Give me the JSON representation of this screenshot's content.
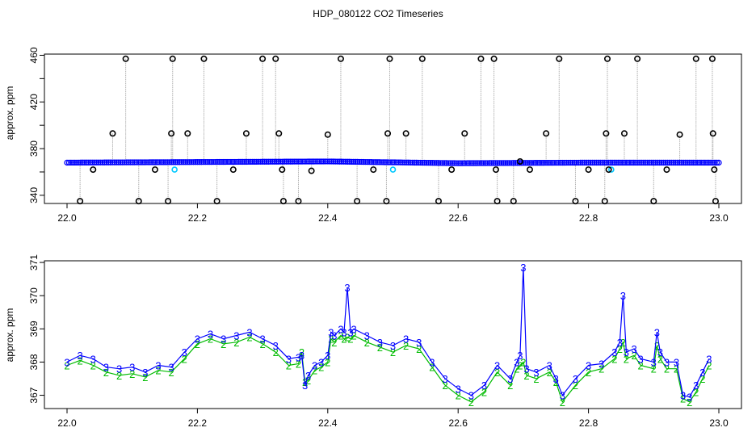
{
  "figure_title": "HDP_080122  CO2 Timeseries",
  "colors": {
    "points_dark": "#000000",
    "points_blue": "#0000ff",
    "points_cyan": "#00c8ff",
    "points_green": "#00bb00",
    "connector_grey": "#b0b0b0",
    "axis": "#000000"
  },
  "chart_data": [
    {
      "type": "scatter",
      "title": "",
      "xlabel": "",
      "ylabel": "approx. ppm",
      "xlim": [
        22.0,
        23.0
      ],
      "ylim": [
        333,
        461
      ],
      "xticks": [
        22.0,
        22.2,
        22.4,
        22.6,
        22.8,
        23.0
      ],
      "xtick_labels": [
        "22.0",
        "22.2",
        "22.4",
        "22.6",
        "22.8",
        "23.0"
      ],
      "yticks": [
        340,
        360,
        380,
        400,
        420,
        440,
        460
      ],
      "ytick_labels": [
        "340",
        "",
        "380",
        "",
        "420",
        "",
        "460"
      ],
      "grid": false,
      "baseline": {
        "x": [
          22.0,
          22.2,
          22.4,
          22.6,
          22.8,
          23.0
        ],
        "y": [
          368,
          368.5,
          369,
          367.5,
          368,
          368
        ]
      },
      "outliers": [
        {
          "x": 22.02,
          "y": 335
        },
        {
          "x": 22.04,
          "y": 362
        },
        {
          "x": 22.07,
          "y": 393
        },
        {
          "x": 22.09,
          "y": 457
        },
        {
          "x": 22.11,
          "y": 335
        },
        {
          "x": 22.135,
          "y": 362
        },
        {
          "x": 22.155,
          "y": 335
        },
        {
          "x": 22.16,
          "y": 393
        },
        {
          "x": 22.162,
          "y": 457
        },
        {
          "x": 22.185,
          "y": 393
        },
        {
          "x": 22.21,
          "y": 457
        },
        {
          "x": 22.23,
          "y": 335
        },
        {
          "x": 22.255,
          "y": 362
        },
        {
          "x": 22.275,
          "y": 393
        },
        {
          "x": 22.3,
          "y": 457
        },
        {
          "x": 22.32,
          "y": 457
        },
        {
          "x": 22.325,
          "y": 393
        },
        {
          "x": 22.33,
          "y": 362
        },
        {
          "x": 22.332,
          "y": 335
        },
        {
          "x": 22.355,
          "y": 335
        },
        {
          "x": 22.375,
          "y": 361
        },
        {
          "x": 22.4,
          "y": 392
        },
        {
          "x": 22.42,
          "y": 457
        },
        {
          "x": 22.445,
          "y": 335
        },
        {
          "x": 22.47,
          "y": 362
        },
        {
          "x": 22.49,
          "y": 335
        },
        {
          "x": 22.492,
          "y": 393
        },
        {
          "x": 22.495,
          "y": 457
        },
        {
          "x": 22.52,
          "y": 393
        },
        {
          "x": 22.545,
          "y": 457
        },
        {
          "x": 22.57,
          "y": 335
        },
        {
          "x": 22.59,
          "y": 362
        },
        {
          "x": 22.61,
          "y": 393
        },
        {
          "x": 22.635,
          "y": 457
        },
        {
          "x": 22.655,
          "y": 457
        },
        {
          "x": 22.658,
          "y": 362
        },
        {
          "x": 22.66,
          "y": 335
        },
        {
          "x": 22.685,
          "y": 335
        },
        {
          "x": 22.695,
          "y": 369
        },
        {
          "x": 22.71,
          "y": 362
        },
        {
          "x": 22.735,
          "y": 393
        },
        {
          "x": 22.755,
          "y": 457
        },
        {
          "x": 22.78,
          "y": 335
        },
        {
          "x": 22.8,
          "y": 362
        },
        {
          "x": 22.825,
          "y": 335
        },
        {
          "x": 22.827,
          "y": 393
        },
        {
          "x": 22.829,
          "y": 457
        },
        {
          "x": 22.831,
          "y": 362
        },
        {
          "x": 22.855,
          "y": 393
        },
        {
          "x": 22.875,
          "y": 457
        },
        {
          "x": 22.9,
          "y": 335
        },
        {
          "x": 22.92,
          "y": 362
        },
        {
          "x": 22.94,
          "y": 392
        },
        {
          "x": 22.965,
          "y": 457
        },
        {
          "x": 22.99,
          "y": 457
        },
        {
          "x": 22.991,
          "y": 393
        },
        {
          "x": 22.993,
          "y": 362
        },
        {
          "x": 22.995,
          "y": 335
        }
      ],
      "cyan_points": [
        {
          "x": 22.165,
          "y": 362
        },
        {
          "x": 22.5,
          "y": 362
        },
        {
          "x": 22.835,
          "y": 362
        }
      ]
    },
    {
      "type": "line",
      "title": "",
      "xlabel": "",
      "ylabel": "approx. ppm",
      "xlim": [
        22.0,
        23.0
      ],
      "ylim": [
        366.6,
        371.05
      ],
      "xticks": [
        22.0,
        22.2,
        22.4,
        22.6,
        22.8,
        23.0
      ],
      "xtick_labels": [
        "22.0",
        "22.2",
        "22.4",
        "22.6",
        "22.8",
        "23.0"
      ],
      "yticks": [
        367,
        368,
        369,
        370,
        371
      ],
      "ytick_labels": [
        "367",
        "368",
        "369",
        "370",
        "371"
      ],
      "grid": false,
      "series": [
        {
          "marker": "3",
          "x": [
            22.0,
            22.02,
            22.04,
            22.06,
            22.08,
            22.1,
            22.12,
            22.14,
            22.16,
            22.18,
            22.2,
            22.22,
            22.24,
            22.26,
            22.28,
            22.3,
            22.32,
            22.34,
            22.355,
            22.36,
            22.365,
            22.37,
            22.38,
            22.39,
            22.4,
            22.405,
            22.41,
            22.42,
            22.425,
            22.43,
            22.435,
            22.44,
            22.46,
            22.48,
            22.5,
            22.52,
            22.54,
            22.56,
            22.58,
            22.6,
            22.62,
            22.64,
            22.66,
            22.68,
            22.69,
            22.695,
            22.7,
            22.705,
            22.72,
            22.74,
            22.75,
            22.76,
            22.78,
            22.8,
            22.82,
            22.84,
            22.848,
            22.853,
            22.858,
            22.87,
            22.88,
            22.9,
            22.905,
            22.91,
            22.92,
            22.935,
            22.945,
            22.955,
            22.965,
            22.975,
            22.985
          ],
          "y": [
            368.0,
            368.2,
            368.1,
            367.85,
            367.8,
            367.85,
            367.7,
            367.9,
            367.85,
            368.3,
            368.7,
            368.85,
            368.7,
            368.8,
            368.9,
            368.7,
            368.5,
            368.1,
            368.15,
            368.2,
            367.3,
            367.6,
            367.9,
            368.0,
            368.2,
            368.9,
            368.8,
            369.0,
            368.9,
            370.25,
            368.9,
            369.0,
            368.8,
            368.6,
            368.5,
            368.7,
            368.6,
            368.0,
            367.5,
            367.2,
            367.0,
            367.3,
            367.9,
            367.5,
            368.0,
            368.2,
            370.85,
            367.8,
            367.7,
            367.9,
            367.5,
            367.0,
            367.5,
            367.9,
            367.95,
            368.3,
            368.6,
            370.0,
            368.3,
            368.4,
            368.1,
            368.0,
            368.9,
            368.3,
            368.0,
            368.0,
            367.0,
            366.95,
            367.3,
            367.7,
            368.1
          ]
        },
        {
          "marker": "2",
          "x": [
            22.0,
            22.02,
            22.04,
            22.06,
            22.08,
            22.1,
            22.12,
            22.14,
            22.16,
            22.18,
            22.2,
            22.22,
            22.24,
            22.26,
            22.28,
            22.3,
            22.32,
            22.34,
            22.355,
            22.36,
            22.365,
            22.37,
            22.38,
            22.39,
            22.4,
            22.405,
            22.41,
            22.42,
            22.425,
            22.43,
            22.435,
            22.44,
            22.46,
            22.48,
            22.5,
            22.52,
            22.54,
            22.56,
            22.58,
            22.6,
            22.62,
            22.64,
            22.66,
            22.68,
            22.69,
            22.695,
            22.7,
            22.705,
            22.72,
            22.74,
            22.75,
            22.76,
            22.78,
            22.8,
            22.82,
            22.84,
            22.848,
            22.853,
            22.858,
            22.87,
            22.88,
            22.9,
            22.905,
            22.91,
            22.92,
            22.935,
            22.945,
            22.955,
            22.965,
            22.975,
            22.985
          ],
          "y": [
            367.9,
            368.05,
            367.9,
            367.7,
            367.6,
            367.65,
            367.55,
            367.75,
            367.7,
            368.1,
            368.55,
            368.7,
            368.55,
            368.6,
            368.75,
            368.55,
            368.3,
            367.9,
            367.95,
            368.3,
            367.4,
            367.45,
            367.75,
            367.85,
            368.0,
            368.7,
            368.6,
            368.8,
            368.7,
            368.75,
            368.7,
            368.8,
            368.6,
            368.45,
            368.3,
            368.5,
            368.4,
            367.85,
            367.3,
            367.0,
            366.8,
            367.1,
            367.7,
            367.3,
            367.8,
            367.9,
            368.0,
            367.6,
            367.5,
            367.7,
            367.4,
            366.8,
            367.3,
            367.7,
            367.8,
            368.1,
            368.4,
            368.6,
            368.1,
            368.2,
            367.9,
            367.8,
            368.5,
            368.1,
            367.8,
            367.8,
            366.9,
            366.8,
            367.1,
            367.5,
            367.9
          ]
        }
      ]
    }
  ]
}
